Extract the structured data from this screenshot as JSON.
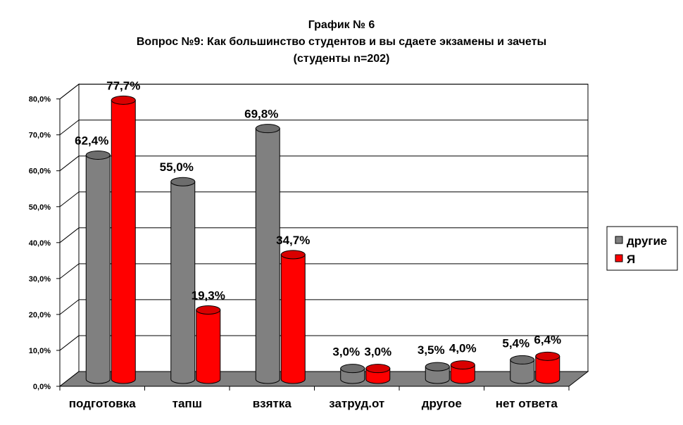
{
  "chart_data": {
    "type": "bar",
    "title_lines": [
      "График № 6",
      "Вопрос №9: Как большинство студентов и вы сдаете экзамены и зачеты",
      "(студенты n=202)"
    ],
    "categories": [
      "подготовка",
      "тапш",
      "взятка",
      "затруд.от",
      "другое",
      "нет ответа"
    ],
    "series": [
      {
        "name": "другие",
        "color": "#808080",
        "values": [
          62.4,
          55.0,
          69.8,
          3.0,
          3.5,
          5.4
        ],
        "labels": [
          "62,4%",
          "55,0%",
          "69,8%",
          "3,0%",
          "3,5%",
          "5,4%"
        ]
      },
      {
        "name": "Я",
        "color": "#ff0000",
        "values": [
          77.7,
          19.3,
          34.7,
          3.0,
          4.0,
          6.4
        ],
        "labels": [
          "77,7%",
          "19,3%",
          "34,7%",
          "3,0%",
          "4,0%",
          "6,4%"
        ]
      }
    ],
    "ylim": [
      0,
      80
    ],
    "yticks": [
      0,
      10,
      20,
      30,
      40,
      50,
      60,
      70,
      80
    ],
    "ytick_labels": [
      "0,0%",
      "10,0%",
      "20,0%",
      "30,0%",
      "40,0%",
      "50,0%",
      "60,0%",
      "70,0%",
      "80,0%"
    ],
    "grid": true,
    "legend_position": "right",
    "floor_color": "#808080"
  }
}
